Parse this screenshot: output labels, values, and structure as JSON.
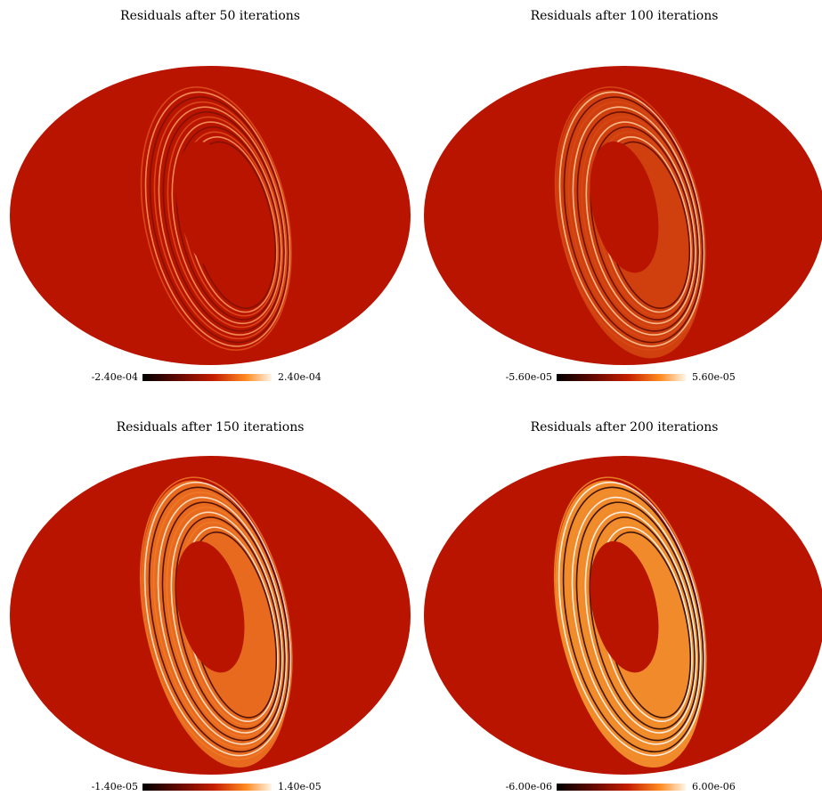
{
  "chart_data": [
    {
      "type": "map",
      "title": "Residuals after 50 iterations",
      "colorbar": {
        "lim": [
          -0.00024,
          0.00024
        ],
        "ticks": [
          {
            "value": -0.00024,
            "label": "-2.40e-04"
          },
          {
            "value": 0.00024,
            "label": "2.40e-04"
          }
        ]
      }
    },
    {
      "type": "map",
      "title": "Residuals after 100 iterations",
      "colorbar": {
        "lim": [
          -5.6e-05,
          5.6e-05
        ],
        "ticks": [
          {
            "value": -5.6e-05,
            "label": "-5.60e-05"
          },
          {
            "value": 5.6e-05,
            "label": "5.60e-05"
          }
        ]
      }
    },
    {
      "type": "map",
      "title": "Residuals after 150 iterations",
      "colorbar": {
        "lim": [
          -1.4e-05,
          1.4e-05
        ],
        "ticks": [
          {
            "value": -1.4e-05,
            "label": "-1.40e-05"
          },
          {
            "value": 1.4e-05,
            "label": "1.40e-05"
          }
        ]
      }
    },
    {
      "type": "map",
      "title": "Residuals after 200 iterations",
      "colorbar": {
        "lim": [
          -6e-06,
          6e-06
        ],
        "ticks": [
          {
            "value": -6e-06,
            "label": "-6.00e-06"
          },
          {
            "value": 6e-06,
            "label": "6.00e-06"
          }
        ]
      }
    }
  ]
}
